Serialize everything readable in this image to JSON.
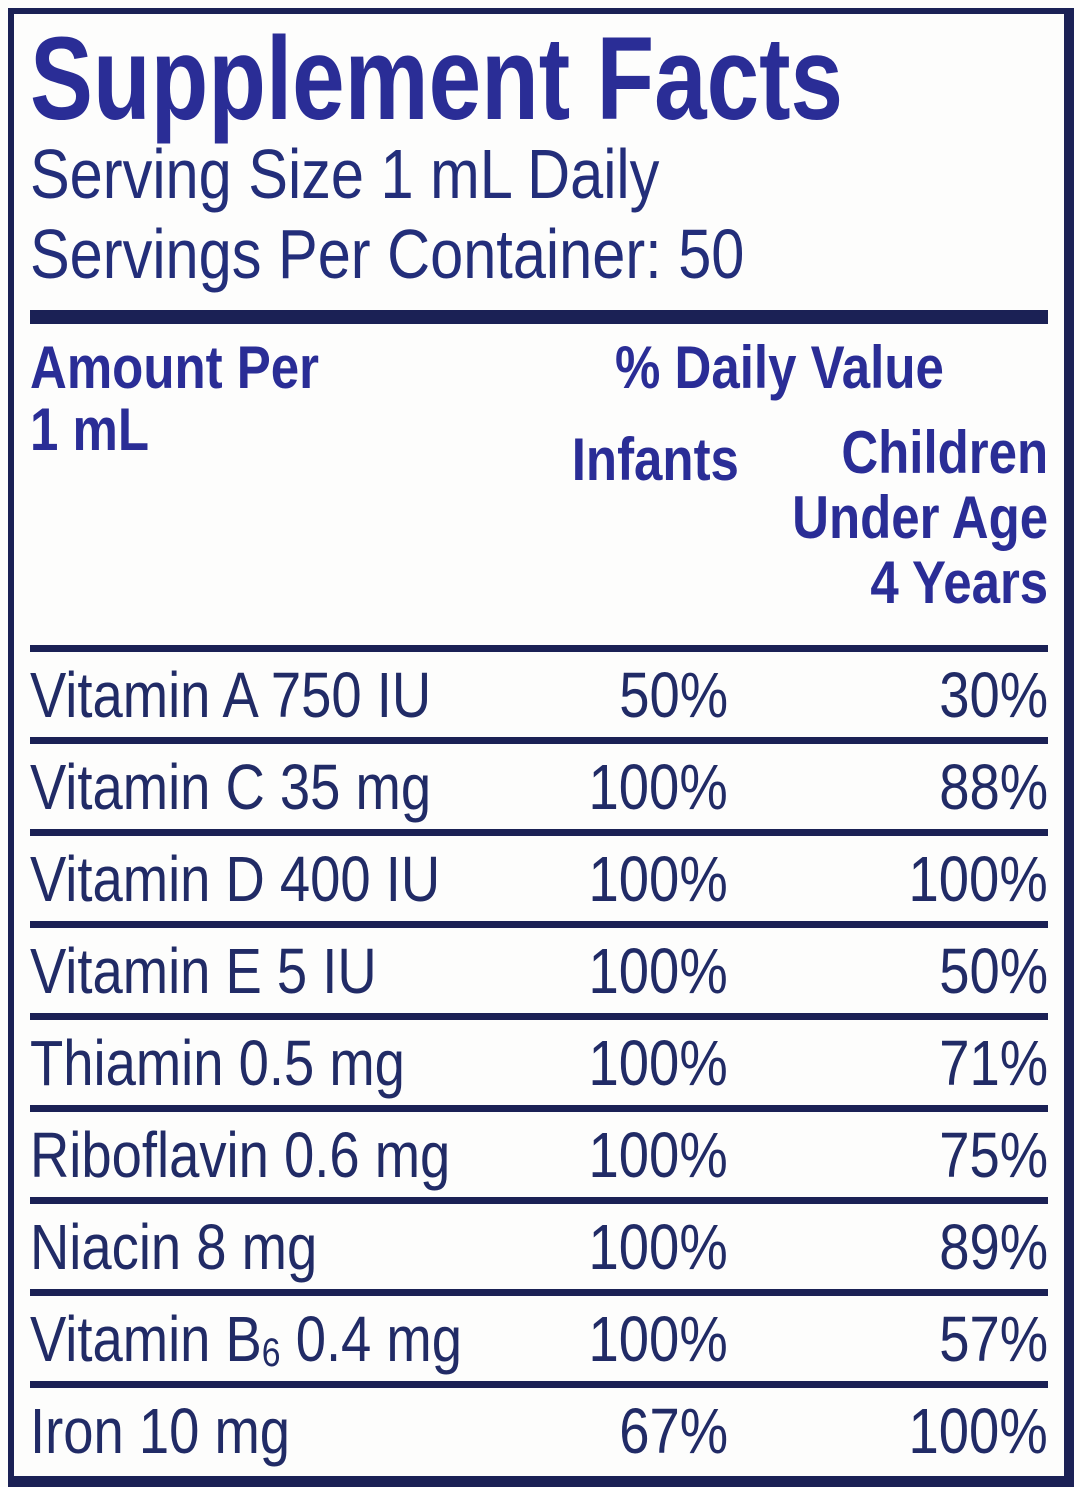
{
  "title": "Supplement Facts",
  "serving": {
    "size": "Serving Size 1 mL Daily",
    "per_container": "Servings Per Container: 50"
  },
  "header": {
    "amount_per_line1": "Amount Per",
    "amount_per_line2": "1 mL",
    "daily_value": "% Daily Value",
    "col_infants": "Infants",
    "col_children_line1": "Children",
    "col_children_line2": "Under Age",
    "col_children_line3": "4 Years"
  },
  "rows": [
    {
      "name": "Vitamin A 750 IU",
      "infants": "50%",
      "children": "30%"
    },
    {
      "name": "Vitamin C 35 mg",
      "infants": "100%",
      "children": "88%"
    },
    {
      "name": "Vitamin D 400 IU",
      "infants": "100%",
      "children": "100%"
    },
    {
      "name": "Vitamin E 5 IU",
      "infants": "100%",
      "children": "50%"
    },
    {
      "name": "Thiamin 0.5 mg",
      "infants": "100%",
      "children": "71%"
    },
    {
      "name": "Riboflavin 0.6 mg",
      "infants": "100%",
      "children": "75%"
    },
    {
      "name": "Niacin 8 mg",
      "infants": "100%",
      "children": "89%"
    },
    {
      "name_pre": "Vitamin B",
      "name_sub": "6",
      "name_post": " 0.4 mg",
      "infants": "100%",
      "children": "57%"
    },
    {
      "name": "Iron 10 mg",
      "infants": "67%",
      "children": "100%"
    }
  ],
  "colors": {
    "heading_blue": "#2a2d96",
    "body_navy": "#212b66",
    "rule_navy": "#1b2155",
    "background": "#fdfdfc"
  }
}
